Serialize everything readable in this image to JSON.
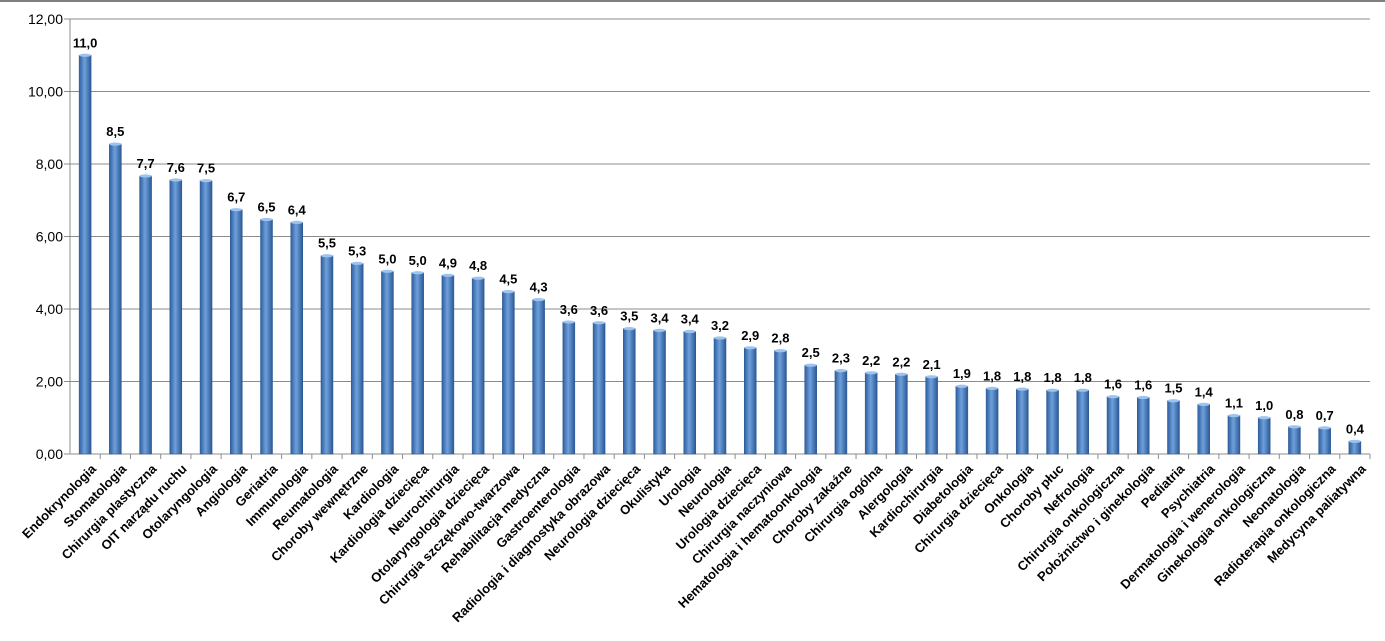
{
  "chart_data": {
    "type": "bar",
    "title": "",
    "xlabel": "",
    "ylabel": "",
    "ylim": [
      0,
      12
    ],
    "ytick_step": 2,
    "ytick_labels": [
      "0,00",
      "2,00",
      "4,00",
      "6,00",
      "8,00",
      "10,00",
      "12,00"
    ],
    "grid": true,
    "legend": "none",
    "bar_color": "#4f81bd",
    "categories": [
      "Endokrynologia",
      "Stomatologia",
      "Chirurgia plastyczna",
      "OIT narządu ruchu",
      "Otolaryngologia",
      "Angiologia",
      "Geriatria",
      "Immunologia",
      "Reumatologia",
      "Choroby wewnętrzne",
      "Kardiologia",
      "Kardiologia dziecięca",
      "Neurochirurgia",
      "Otolaryngologia dziecięca",
      "Chirurgia szczękowo-twarzowa",
      "Rehabilitacja medyczna",
      "Gastroenterologia",
      "Radiologia i diagnostyka obrazowa",
      "Neurologia dziecięca",
      "Okulistyka",
      "Urologia",
      "Neurologia",
      "Urologia dziecięca",
      "Chirurgia naczyniowa",
      "Hematologia i hematoonkologia",
      "Choroby zakaźne",
      "Chirurgia ogólna",
      "Alergologia",
      "Kardiochirurgia",
      "Diabetologia",
      "Chirurgia dziecięca",
      "Onkologia",
      "Choroby płuc",
      "Nefrologia",
      "Chirurgia onkologiczna",
      "Położnictwo i ginekologia",
      "Pediatria",
      "Psychiatria",
      "Dermatologia i wenerologia",
      "Ginekologia onkologiczna",
      "Neonatologia",
      "Radioterapia onkologiczna",
      "Medycyna paliatywna"
    ],
    "values": [
      11.0,
      8.55,
      7.67,
      7.56,
      7.54,
      6.74,
      6.47,
      6.39,
      5.47,
      5.26,
      5.04,
      5.0,
      4.93,
      4.85,
      4.48,
      4.26,
      3.64,
      3.62,
      3.46,
      3.41,
      3.38,
      3.2,
      2.93,
      2.85,
      2.45,
      2.3,
      2.24,
      2.2,
      2.13,
      1.87,
      1.81,
      1.79,
      1.76,
      1.76,
      1.58,
      1.56,
      1.47,
      1.37,
      1.06,
      1.0,
      0.75,
      0.72,
      0.35
    ],
    "data_labels": [
      "11,0",
      "8,5",
      "7,7",
      "7,6",
      "7,5",
      "6,7",
      "6,5",
      "6,4",
      "5,5",
      "5,3",
      "5,0",
      "5,0",
      "4,9",
      "4,8",
      "4,5",
      "4,3",
      "3,6",
      "3,6",
      "3,5",
      "3,4",
      "3,4",
      "3,2",
      "2,9",
      "2,8",
      "2,5",
      "2,3",
      "2,2",
      "2,2",
      "2,1",
      "1,9",
      "1,8",
      "1,8",
      "1,8",
      "1,8",
      "1,6",
      "1,6",
      "1,5",
      "1,4",
      "1,1",
      "1,0",
      "0,8",
      "0,7",
      "0,4"
    ]
  }
}
